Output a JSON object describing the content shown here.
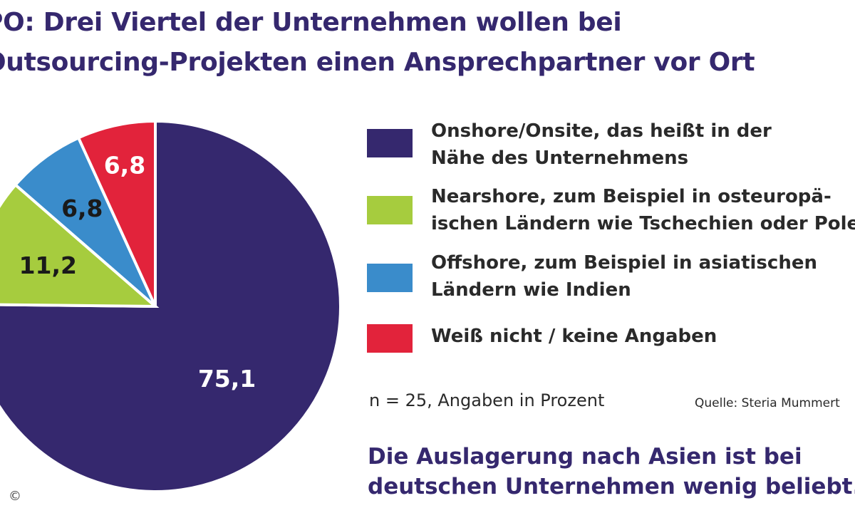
{
  "title_line1": "PO: Drei Viertel der Unternehmen wollen bei",
  "title_line2": "Outsourcing-Projekten einen Ansprechpartner vor Ort",
  "chart_data": {
    "type": "pie",
    "categories": [
      "Onshore/Onsite, das heißt in der Nähe des Unternehmens",
      "Nearshore, zum Beispiel in osteuropäischen Ländern wie Tschechien oder Polen",
      "Offshore, zum Beispiel in asiatischen Ländern wie Indien",
      "Weiß nicht / keine Angaben"
    ],
    "values": [
      75.1,
      11.2,
      6.8,
      6.8
    ],
    "value_labels": [
      "75,1",
      "11,2",
      "6,8",
      "6,8"
    ],
    "colors": [
      "#35286e",
      "#a6cc3e",
      "#3a8ccb",
      "#e2233b"
    ],
    "label_colors": [
      "#ffffff",
      "#1a1a1a",
      "#1a1a1a",
      "#ffffff"
    ],
    "start": "12 o'clock",
    "direction": "clockwise",
    "legend_position": "right"
  },
  "legend": [
    {
      "line1": "Onshore/Onsite, das heißt in der",
      "line2": "Nähe des Unternehmens",
      "color": "#35286e"
    },
    {
      "line1": "Nearshore, zum Beispiel in osteuropä-",
      "line2": "ischen Ländern wie Tschechien oder Polen",
      "color": "#a6cc3e"
    },
    {
      "line1": "Offshore, zum Beispiel in asiatischen",
      "line2": "Ländern wie Indien",
      "color": "#3a8ccb"
    },
    {
      "line1": "Weiß nicht / keine Angaben",
      "line2": "",
      "color": "#e2233b"
    }
  ],
  "note": "n = 25, Angaben in Prozent",
  "source": "Quelle: Steria Mummert",
  "footer_line1": "Die Auslagerung nach Asien ist bei",
  "footer_line2": "deutschen Unternehmen wenig beliebt.",
  "copyright": "©"
}
